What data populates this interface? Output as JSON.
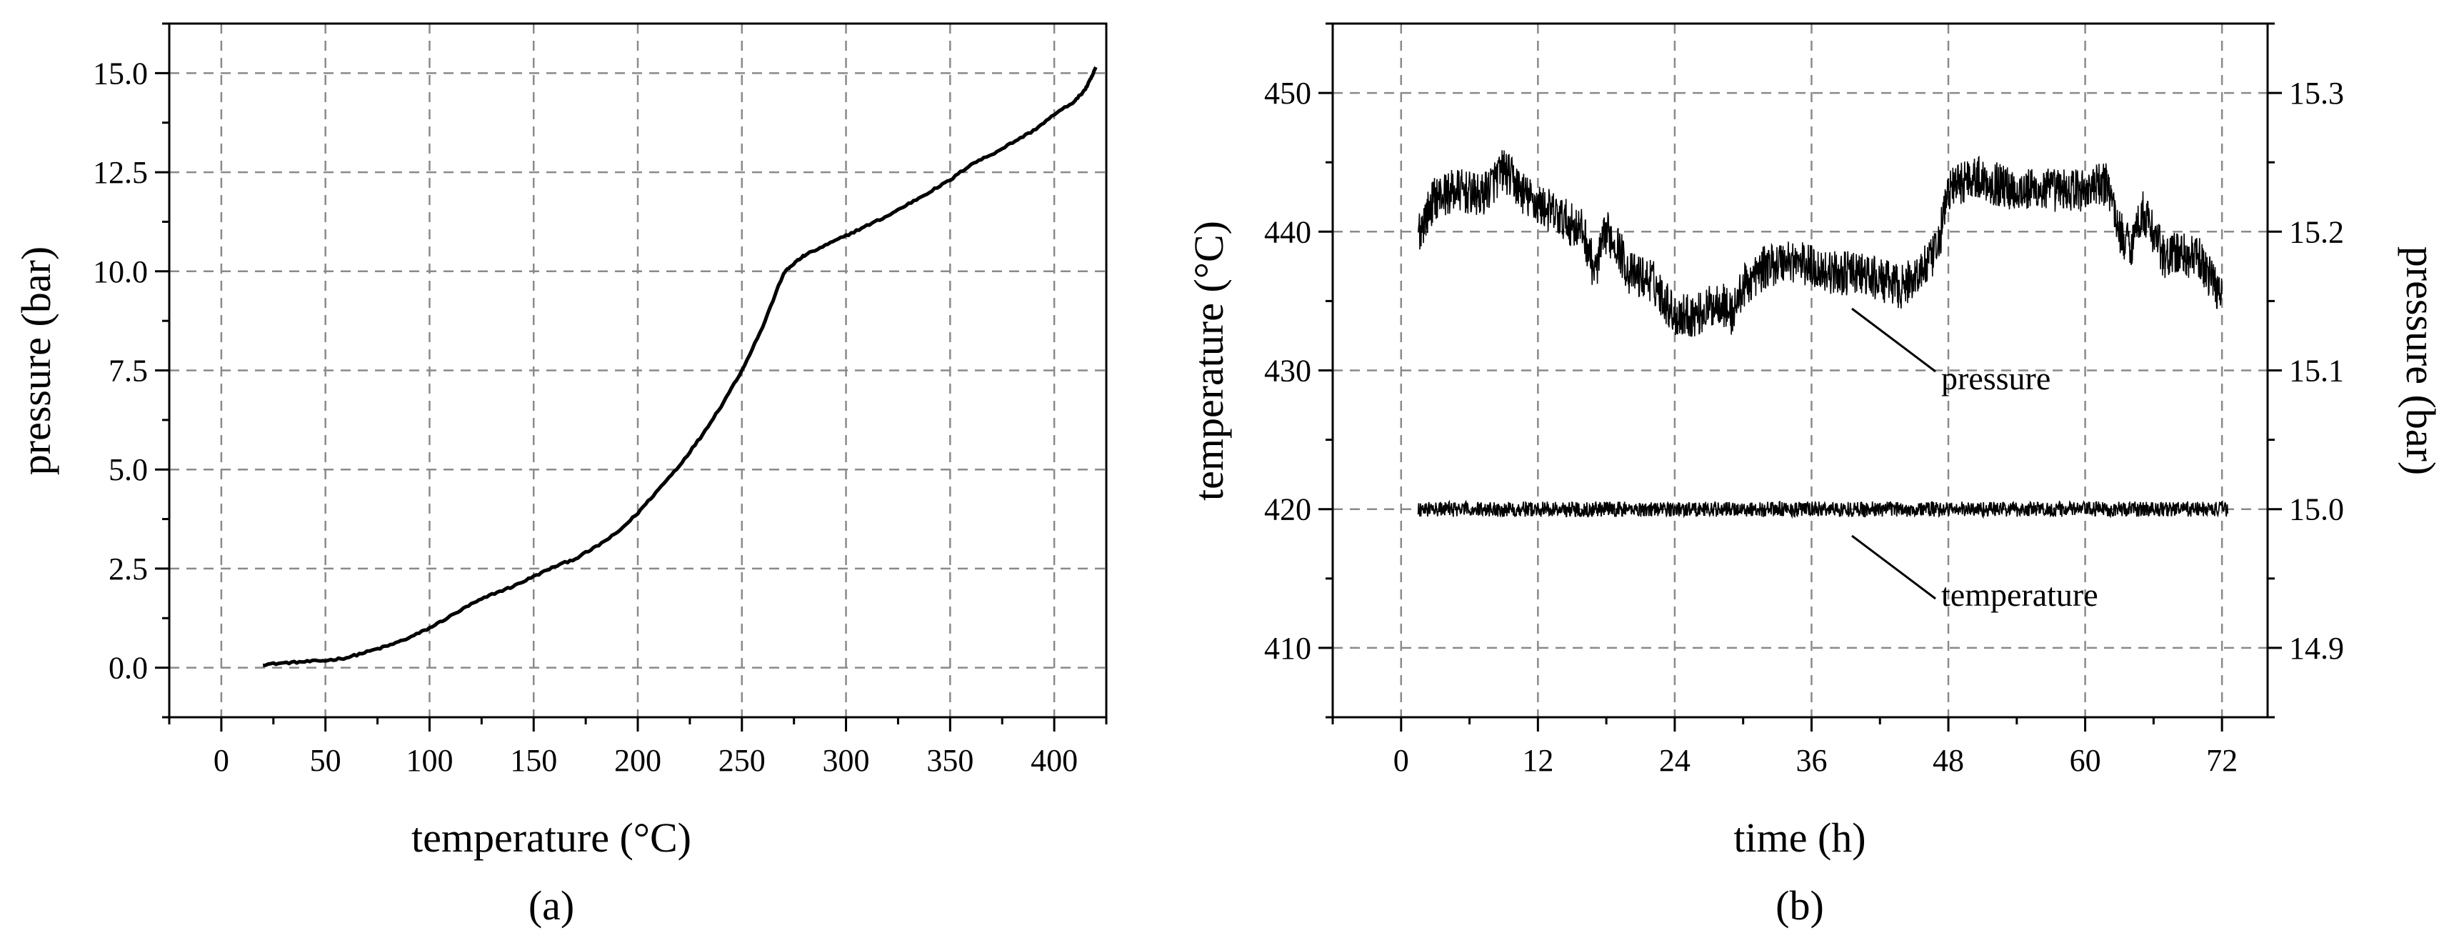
{
  "chart_data": [
    {
      "type": "line",
      "panel_label": "(a)",
      "xlabel": "temperature (°C)",
      "ylabel": "pressure (bar)",
      "xlim": [
        -25,
        425
      ],
      "ylim": [
        -1.25,
        16.25
      ],
      "xticks": [
        0,
        50,
        100,
        150,
        200,
        250,
        300,
        350,
        400
      ],
      "xtick_labels": [
        "0",
        "50",
        "100",
        "150",
        "200",
        "250",
        "300",
        "350",
        "400"
      ],
      "yticks": [
        0.0,
        2.5,
        5.0,
        7.5,
        10.0,
        12.5,
        15.0
      ],
      "ytick_labels": [
        "0.0",
        "2.5",
        "5.0",
        "7.5",
        "10.0",
        "12.5",
        "15.0"
      ],
      "grid": true,
      "series": [
        {
          "x": [
            20,
            30,
            40,
            50,
            60,
            70,
            80,
            90,
            100,
            110,
            120,
            130,
            140,
            150,
            160,
            170,
            180,
            190,
            200,
            210,
            220,
            230,
            240,
            250,
            260,
            270,
            275,
            280,
            290,
            300,
            310,
            320,
            330,
            340,
            350,
            360,
            370,
            380,
            390,
            400,
            410,
            415,
            418,
            420
          ],
          "y": [
            0.08,
            0.12,
            0.15,
            0.18,
            0.25,
            0.4,
            0.55,
            0.75,
            1.0,
            1.3,
            1.6,
            1.85,
            2.05,
            2.3,
            2.55,
            2.75,
            3.05,
            3.4,
            3.9,
            4.5,
            5.1,
            5.8,
            6.6,
            7.5,
            8.6,
            9.95,
            10.2,
            10.4,
            10.65,
            10.9,
            11.15,
            11.4,
            11.7,
            12.0,
            12.3,
            12.7,
            12.95,
            13.25,
            13.55,
            13.95,
            14.3,
            14.6,
            14.9,
            15.15
          ]
        }
      ]
    },
    {
      "type": "line",
      "panel_label": "(b)",
      "xlabel": "time (h)",
      "ylabel": "temperature (°C)",
      "y2label": "pressure (bar)",
      "xlim": [
        -6,
        76
      ],
      "ylim": [
        405,
        455
      ],
      "y2lim": [
        14.85,
        15.35
      ],
      "xticks": [
        0,
        12,
        24,
        36,
        48,
        60,
        72
      ],
      "xtick_labels": [
        "0",
        "12",
        "24",
        "36",
        "48",
        "60",
        "72"
      ],
      "yticks": [
        410,
        420,
        430,
        440,
        450
      ],
      "ytick_labels": [
        "410",
        "420",
        "430",
        "440",
        "450"
      ],
      "y2ticks": [
        14.9,
        15.0,
        15.1,
        15.2,
        15.3
      ],
      "y2tick_labels": [
        "14.9",
        "15.0",
        "15.1",
        "15.2",
        "15.3"
      ],
      "grid": true,
      "annotations": [
        {
          "text": "pressure"
        },
        {
          "text": "temperature"
        }
      ],
      "series": [
        {
          "axis": "right",
          "x": [
            1.5,
            3,
            5,
            7,
            9,
            11,
            13,
            15,
            16,
            17,
            18,
            19,
            20,
            22,
            24,
            26,
            28,
            29,
            30,
            32,
            34,
            36,
            38,
            40,
            42,
            44,
            46,
            47,
            48,
            50,
            52,
            54,
            56,
            58,
            60,
            62,
            63,
            64,
            65,
            66,
            67,
            68,
            70,
            72
          ],
          "y": [
            15.2,
            15.225,
            15.23,
            15.225,
            15.245,
            15.225,
            15.215,
            15.205,
            15.2,
            15.17,
            15.2,
            15.19,
            15.17,
            15.165,
            15.14,
            15.14,
            15.15,
            15.14,
            15.16,
            15.175,
            15.18,
            15.175,
            15.17,
            15.17,
            15.165,
            15.16,
            15.175,
            15.185,
            15.23,
            15.24,
            15.235,
            15.23,
            15.23,
            15.23,
            15.23,
            15.235,
            15.2,
            15.19,
            15.215,
            15.2,
            15.18,
            15.185,
            15.18,
            15.155
          ]
        },
        {
          "axis": "left",
          "x": [
            1.5,
            72.5
          ],
          "y": [
            420,
            420
          ]
        }
      ]
    }
  ]
}
